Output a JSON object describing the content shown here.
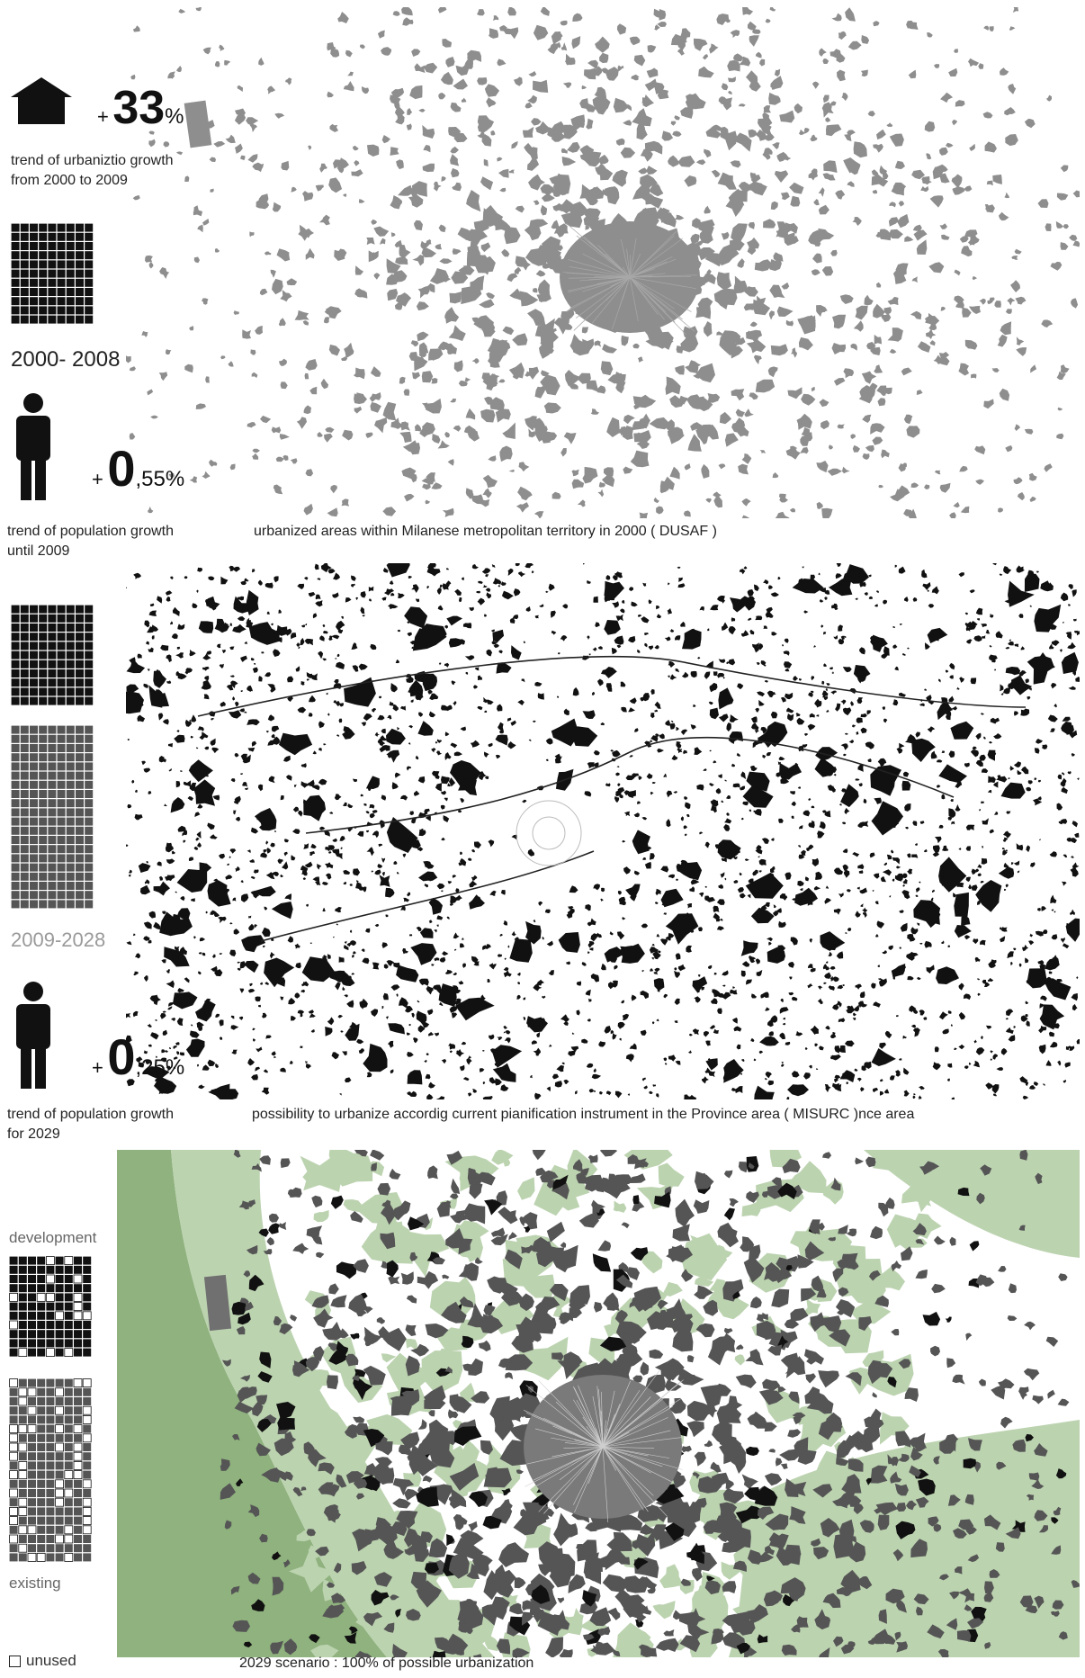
{
  "panel1": {
    "stat_plus": "+",
    "stat_value": "33",
    "stat_suffix": "%",
    "caption_line1": "trend of urbaniztio growth",
    "caption_line2": "from 2000 to 2009",
    "period": "2000- 2008",
    "map_caption": "urbanized areas  within Milanese metropolitan territory in 2000 ( DUSAF )"
  },
  "pop1": {
    "stat_plus": "+",
    "stat_value": "0",
    "stat_suffix": ",55%",
    "caption_line1": "trend of population growth",
    "caption_line2": "until 2009"
  },
  "panel2": {
    "period": "2009-2028",
    "map_caption": "possibility to urbanize accordig current pianification instrument in the Province area ( MISURC )nce area"
  },
  "pop2": {
    "stat_plus": "+",
    "stat_value": "0",
    "stat_suffix": ",25%",
    "caption_line1": "trend of population growth",
    "caption_line2": "for 2029"
  },
  "panel3": {
    "label_development": "development",
    "label_existing": "existing",
    "legend_unused": "unused",
    "map_caption": "2029 scenario :  100% of possible urbanization"
  },
  "colors": {
    "urban_grey": "#8e8e8e",
    "plan_black": "#111111",
    "green_light": "#bcd3b0",
    "green_dark": "#8fb27e",
    "urban_dark": "#555555"
  },
  "icons": [
    "house-icon",
    "person-icon",
    "grid-icon"
  ]
}
